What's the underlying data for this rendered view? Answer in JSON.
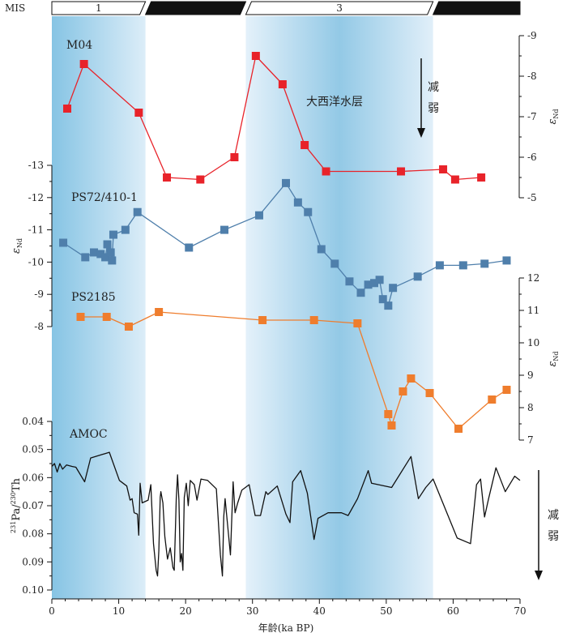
{
  "mis": {
    "label": "MIS",
    "stages": [
      {
        "name": "1",
        "start": 0,
        "end": 14,
        "fill": "#ffffff"
      },
      {
        "name": "",
        "start": 14,
        "end": 29,
        "fill": "#111111"
      },
      {
        "name": "3",
        "start": 29,
        "end": 57,
        "fill": "#ffffff"
      },
      {
        "name": "",
        "start": 57,
        "end": 70,
        "fill": "#111111"
      }
    ]
  },
  "shading": [
    {
      "start": 0,
      "end": 14
    },
    {
      "start": 29,
      "end": 57
    }
  ],
  "annotations": {
    "atlantic_layer": "大西洋水层",
    "weaken_top": "减弱",
    "weaken_bottom": "减弱"
  },
  "chart_data": {
    "type": "line",
    "x": {
      "label": "年龄(ka BP)",
      "range": [
        0,
        70
      ],
      "ticks": [
        0,
        10,
        20,
        30,
        40,
        50,
        60,
        70
      ]
    },
    "series": [
      {
        "name": "M04",
        "color": "#e8232a",
        "marker": "square",
        "axis": {
          "label": "εNd",
          "side": "right",
          "range": [
            -9,
            -5
          ],
          "ticks": [
            "-9",
            "-8",
            "-7",
            "-6",
            "-5"
          ]
        },
        "points": [
          [
            2.3,
            -7.2
          ],
          [
            4.8,
            -8.3
          ],
          [
            13,
            -7.1
          ],
          [
            17.2,
            -5.5
          ],
          [
            22.2,
            -5.45
          ],
          [
            27.3,
            -6.0
          ],
          [
            30.5,
            -8.5
          ],
          [
            34.5,
            -7.8
          ],
          [
            37.8,
            -6.3
          ],
          [
            41,
            -5.65
          ],
          [
            52.2,
            -5.65
          ],
          [
            58.5,
            -5.7
          ],
          [
            60.3,
            -5.45
          ],
          [
            64.2,
            -5.5
          ]
        ]
      },
      {
        "name": "PS72/410-1",
        "color": "#4f7fab",
        "marker": "square",
        "axis": {
          "label": "εNd",
          "side": "left",
          "range": [
            -13,
            -8
          ],
          "ticks": [
            "-13",
            "-12",
            "-11",
            "-10",
            "-9",
            "-8"
          ]
        },
        "points": [
          [
            1.7,
            -10.6
          ],
          [
            5,
            -10.15
          ],
          [
            6.3,
            -10.3
          ],
          [
            7.3,
            -10.25
          ],
          [
            8,
            -10.15
          ],
          [
            8.3,
            -10.55
          ],
          [
            8.8,
            -10.3
          ],
          [
            9,
            -10.05
          ],
          [
            9.2,
            -10.85
          ],
          [
            11,
            -11.0
          ],
          [
            12.8,
            -11.55
          ],
          [
            20.5,
            -10.45
          ],
          [
            25.8,
            -11.0
          ],
          [
            31,
            -11.45
          ],
          [
            35,
            -12.45
          ],
          [
            36.8,
            -11.85
          ],
          [
            38.3,
            -11.55
          ],
          [
            40.3,
            -10.4
          ],
          [
            42.3,
            -9.95
          ],
          [
            44.5,
            -9.4
          ],
          [
            46.2,
            -9.05
          ],
          [
            47.3,
            -9.3
          ],
          [
            48.2,
            -9.35
          ],
          [
            49,
            -9.45
          ],
          [
            49.5,
            -8.85
          ],
          [
            50.3,
            -8.65
          ],
          [
            51,
            -9.2
          ],
          [
            54.7,
            -9.55
          ],
          [
            58,
            -9.9
          ],
          [
            61.5,
            -9.9
          ],
          [
            64.7,
            -9.95
          ],
          [
            68,
            -10.05
          ]
        ]
      },
      {
        "name": "PS2185",
        "color": "#ef7d2d",
        "marker": "square",
        "axis": {
          "label": "εNd",
          "side": "right",
          "range": [
            7,
            12
          ],
          "ticks": [
            "7",
            "8",
            "9",
            "10",
            "11",
            "12"
          ]
        },
        "points": [
          [
            4.3,
            10.8
          ],
          [
            8.2,
            10.8
          ],
          [
            11.5,
            10.5
          ],
          [
            16,
            10.95
          ],
          [
            31.5,
            10.7
          ],
          [
            39.2,
            10.7
          ],
          [
            45.7,
            10.6
          ],
          [
            50.3,
            7.8
          ],
          [
            50.8,
            7.45
          ],
          [
            52.5,
            8.5
          ],
          [
            53.7,
            8.9
          ],
          [
            56.5,
            8.45
          ],
          [
            60.8,
            7.35
          ],
          [
            65.8,
            8.25
          ],
          [
            68,
            8.55
          ]
        ]
      },
      {
        "name": "AMOC",
        "color": "#111111",
        "marker": "none",
        "axis": {
          "label": "231Pa/230Th",
          "side": "left",
          "range": [
            0.04,
            0.1
          ],
          "inverted": true,
          "ticks": [
            "0.04",
            "0.05",
            "0.06",
            "0.07",
            "0.08",
            "0.09",
            "0.10"
          ]
        },
        "points": [
          [
            0,
            0.056
          ],
          [
            0.4,
            0.055
          ],
          [
            0.8,
            0.058
          ],
          [
            1.2,
            0.055
          ],
          [
            1.6,
            0.057
          ],
          [
            2.2,
            0.0555
          ],
          [
            3,
            0.056
          ],
          [
            3.6,
            0.0563
          ],
          [
            4.9,
            0.0615
          ],
          [
            5.8,
            0.053
          ],
          [
            8.6,
            0.051
          ],
          [
            10.1,
            0.061
          ],
          [
            11.2,
            0.063
          ],
          [
            11.7,
            0.068
          ],
          [
            12,
            0.0675
          ],
          [
            12.3,
            0.0725
          ],
          [
            12.8,
            0.073
          ],
          [
            13,
            0.0805
          ],
          [
            13.2,
            0.062
          ],
          [
            13.5,
            0.069
          ],
          [
            14.4,
            0.068
          ],
          [
            14.8,
            0.0625
          ],
          [
            15.2,
            0.0835
          ],
          [
            15.6,
            0.093
          ],
          [
            15.8,
            0.095
          ],
          [
            16,
            0.086
          ],
          [
            16.2,
            0.067
          ],
          [
            16.3,
            0.065
          ],
          [
            16.6,
            0.069
          ],
          [
            16.9,
            0.081
          ],
          [
            17.3,
            0.089
          ],
          [
            17.7,
            0.085
          ],
          [
            18.1,
            0.092
          ],
          [
            18.3,
            0.093
          ],
          [
            18.5,
            0.076
          ],
          [
            18.6,
            0.0675
          ],
          [
            18.8,
            0.059
          ],
          [
            19,
            0.068
          ],
          [
            19.2,
            0.09
          ],
          [
            19.4,
            0.087
          ],
          [
            19.6,
            0.093
          ],
          [
            19.8,
            0.067
          ],
          [
            20.1,
            0.062
          ],
          [
            20.4,
            0.07
          ],
          [
            20.7,
            0.061
          ],
          [
            21.3,
            0.0625
          ],
          [
            21.7,
            0.068
          ],
          [
            22.3,
            0.0605
          ],
          [
            23.3,
            0.061
          ],
          [
            24.6,
            0.064
          ],
          [
            25.2,
            0.0875
          ],
          [
            25.5,
            0.095
          ],
          [
            25.7,
            0.074
          ],
          [
            25.9,
            0.0675
          ],
          [
            26.3,
            0.0775
          ],
          [
            26.7,
            0.0875
          ],
          [
            27.1,
            0.0615
          ],
          [
            27.4,
            0.0725
          ],
          [
            27.8,
            0.069
          ],
          [
            28.4,
            0.0645
          ],
          [
            29.5,
            0.0625
          ],
          [
            30.4,
            0.0735
          ],
          [
            31.2,
            0.0735
          ],
          [
            32,
            0.065
          ],
          [
            32.3,
            0.066
          ],
          [
            33.7,
            0.063
          ],
          [
            35,
            0.073
          ],
          [
            35.6,
            0.076
          ],
          [
            36,
            0.0615
          ],
          [
            37.2,
            0.0575
          ],
          [
            38.2,
            0.0655
          ],
          [
            39.2,
            0.082
          ],
          [
            39.8,
            0.0745
          ],
          [
            41.3,
            0.0725
          ],
          [
            43.3,
            0.0725
          ],
          [
            44.3,
            0.0735
          ],
          [
            45.7,
            0.0675
          ],
          [
            47.3,
            0.0575
          ],
          [
            47.8,
            0.062
          ],
          [
            50.8,
            0.0635
          ],
          [
            53.7,
            0.0525
          ],
          [
            54.8,
            0.0675
          ],
          [
            55.9,
            0.0635
          ],
          [
            57,
            0.0605
          ],
          [
            60.6,
            0.0815
          ],
          [
            62.6,
            0.0835
          ],
          [
            63.5,
            0.0625
          ],
          [
            64.1,
            0.0605
          ],
          [
            64.7,
            0.074
          ],
          [
            65.3,
            0.0675
          ],
          [
            66.4,
            0.0565
          ],
          [
            67.8,
            0.065
          ],
          [
            69.2,
            0.0595
          ],
          [
            70,
            0.061
          ]
        ]
      }
    ]
  }
}
